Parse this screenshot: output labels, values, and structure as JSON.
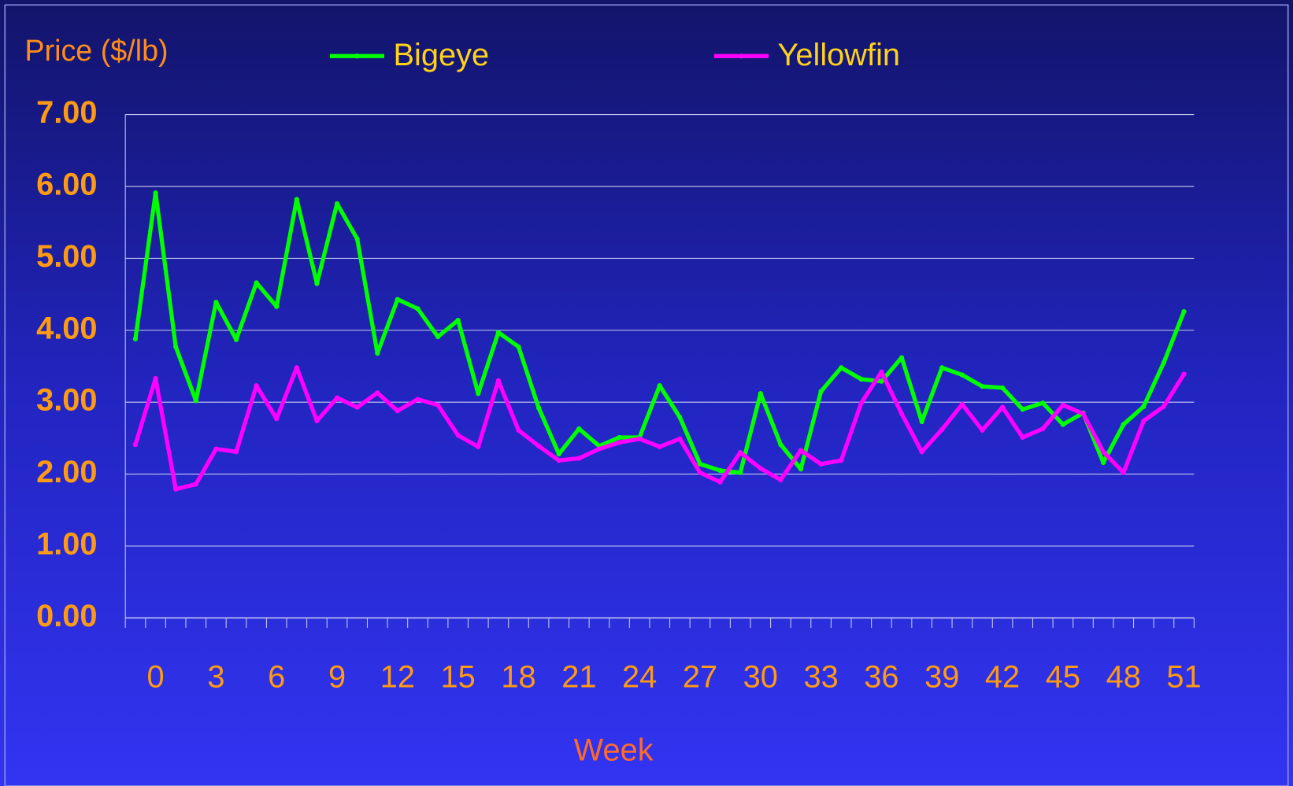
{
  "chart_data": {
    "type": "line",
    "title": "Price ($/lb)",
    "x_label": "Week",
    "categories": [
      null,
      0,
      null,
      null,
      3,
      null,
      null,
      6,
      null,
      null,
      9,
      null,
      null,
      12,
      null,
      null,
      15,
      null,
      null,
      18,
      null,
      null,
      21,
      null,
      null,
      24,
      null,
      null,
      27,
      null,
      null,
      30,
      null,
      null,
      33,
      null,
      null,
      36,
      null,
      null,
      39,
      null,
      null,
      42,
      null,
      null,
      45,
      null,
      null,
      48,
      null,
      null,
      51
    ],
    "series": [
      {
        "name": "Bigeye",
        "color": "#00ff00",
        "values": [
          3.88,
          5.91,
          3.77,
          3.02,
          4.39,
          3.87,
          4.66,
          4.33,
          5.82,
          4.65,
          5.76,
          5.27,
          3.68,
          4.43,
          4.3,
          3.91,
          4.14,
          3.12,
          3.97,
          3.77,
          2.92,
          2.28,
          2.63,
          2.39,
          2.51,
          2.51,
          3.23,
          2.79,
          2.14,
          2.05,
          2.02,
          3.12,
          2.41,
          2.07,
          3.15,
          3.48,
          3.32,
          3.29,
          3.62,
          2.73,
          3.48,
          3.38,
          3.22,
          3.2,
          2.9,
          2.99,
          2.69,
          2.85,
          2.16,
          2.69,
          2.94,
          3.55,
          4.26
        ]
      },
      {
        "name": "Yellowfin",
        "color": "#ff00ff",
        "values": [
          2.41,
          3.33,
          1.79,
          1.86,
          2.35,
          2.31,
          3.23,
          2.77,
          3.48,
          2.74,
          3.06,
          2.93,
          3.13,
          2.88,
          3.04,
          2.96,
          2.54,
          2.38,
          3.3,
          2.61,
          2.39,
          2.19,
          2.22,
          2.35,
          2.44,
          2.49,
          2.38,
          2.49,
          2.02,
          1.89,
          2.3,
          2.08,
          1.92,
          2.33,
          2.14,
          2.19,
          2.99,
          3.42,
          2.84,
          2.31,
          2.62,
          2.97,
          2.61,
          2.93,
          2.51,
          2.63,
          2.96,
          2.84,
          2.31,
          2.02,
          2.74,
          2.94,
          3.39
        ]
      }
    ],
    "ylim": [
      0,
      7
    ],
    "yticks": [
      {
        "value": 0,
        "label": "0.00"
      },
      {
        "value": 1,
        "label": "1.00"
      },
      {
        "value": 2,
        "label": "2.00"
      },
      {
        "value": 3,
        "label": "3.00"
      },
      {
        "value": 4,
        "label": "4.00"
      },
      {
        "value": 5,
        "label": "5.00"
      },
      {
        "value": 6,
        "label": "6.00"
      },
      {
        "value": 7,
        "label": "7.00"
      }
    ],
    "grid": true
  }
}
